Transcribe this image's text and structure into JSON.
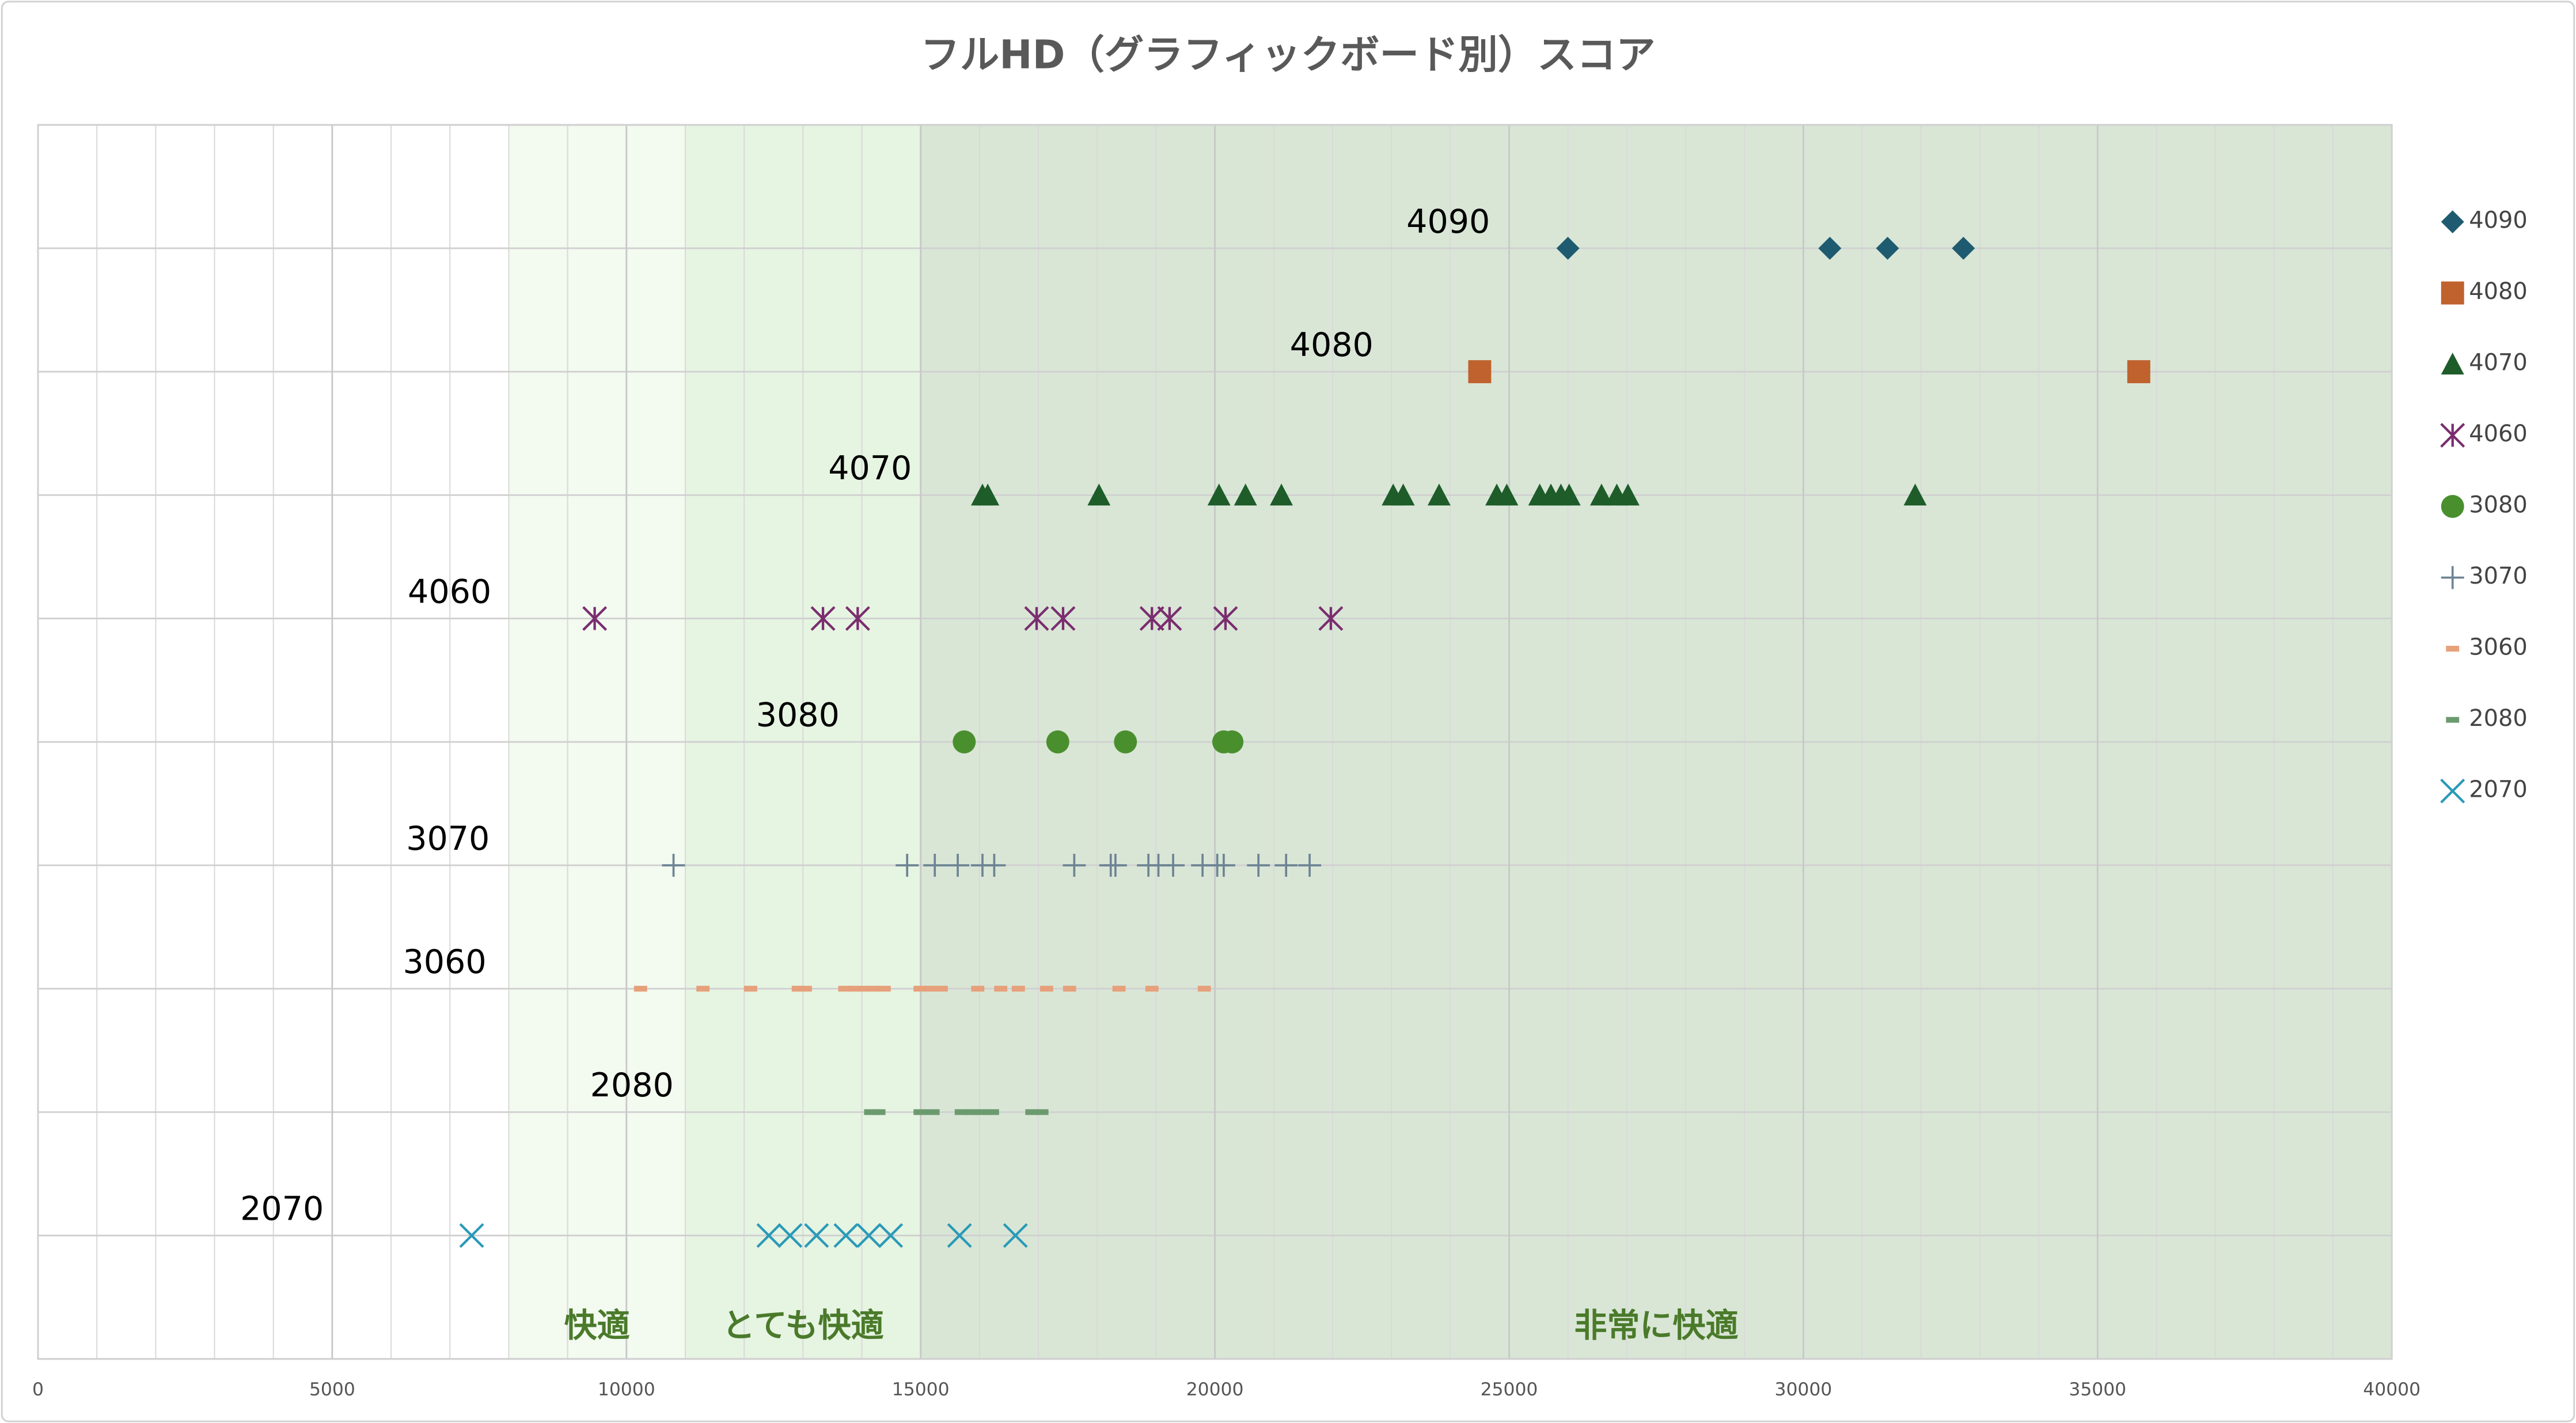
{
  "chart_data": {
    "type": "scatter",
    "title": "フルHD（グラフィックボード別）スコア",
    "xlim": [
      0,
      40000
    ],
    "xticks": [
      0,
      5000,
      10000,
      15000,
      20000,
      25000,
      30000,
      35000,
      40000
    ],
    "minor_grid_step": 1000,
    "ylim": [
      0,
      10
    ],
    "grid": true,
    "legend": "right",
    "zones": [
      {
        "label": "快適",
        "range": [
          8000,
          11000
        ],
        "color": "#f3faf0"
      },
      {
        "label": "とても快適",
        "range": [
          11000,
          15000
        ],
        "color": "#e6f4e2"
      },
      {
        "label": "非常に快適",
        "range": [
          15000,
          40000
        ],
        "color": "#d9e6d6"
      }
    ],
    "series": [
      {
        "name": "4090",
        "color": "#1f5b70",
        "marker": "diamond",
        "y": 9,
        "x": [
          26000,
          30450,
          31430,
          32720
        ]
      },
      {
        "name": "4080",
        "color": "#c0622e",
        "marker": "square",
        "y": 8,
        "x": [
          24500,
          35700
        ]
      },
      {
        "name": "4070",
        "color": "#1e5c2a",
        "marker": "triangle",
        "y": 7,
        "x": [
          16050,
          16140,
          18030,
          20070,
          20520,
          21130,
          23030,
          23200,
          23810,
          24790,
          24960,
          25520,
          25710,
          25880,
          26020,
          26570,
          26830,
          27020,
          31900
        ]
      },
      {
        "name": "4060",
        "color": "#7a2d6e",
        "marker": "asterisk",
        "y": 6,
        "x": [
          9460,
          13340,
          13930,
          16970,
          17420,
          18930,
          19230,
          20180,
          21970
        ]
      },
      {
        "name": "3080",
        "color": "#4a8f2e",
        "marker": "circle",
        "y": 5,
        "x": [
          15740,
          17330,
          18480,
          20150,
          20290
        ]
      },
      {
        "name": "3070",
        "color": "#6e8494",
        "marker": "plus",
        "y": 4,
        "x": [
          10800,
          14770,
          15240,
          15630,
          16050,
          16250,
          17610,
          18230,
          18310,
          18870,
          19040,
          19290,
          19790,
          20040,
          20150,
          20740,
          21210,
          21610
        ]
      },
      {
        "name": "3060",
        "color": "#e6a07a",
        "marker": "dash",
        "y": 3,
        "x": [
          10240,
          11300,
          12110,
          12920,
          13040,
          13710,
          13870,
          14040,
          14210,
          14380,
          14990,
          15160,
          15350,
          15970,
          16360,
          16660,
          17140,
          17530,
          18370,
          18930,
          19820
        ]
      },
      {
        "name": "2080",
        "color": "#6b9a6e",
        "marker": "dash",
        "y": 2,
        "x": [
          14150,
          14290,
          14990,
          15210,
          15690,
          15860,
          16020,
          16220,
          16890,
          17060
        ]
      },
      {
        "name": "2070",
        "color": "#2a9ab8",
        "marker": "x",
        "y": 1,
        "x": [
          7370,
          12420,
          12780,
          13230,
          13730,
          14120,
          14490,
          15660,
          16610
        ]
      }
    ]
  }
}
